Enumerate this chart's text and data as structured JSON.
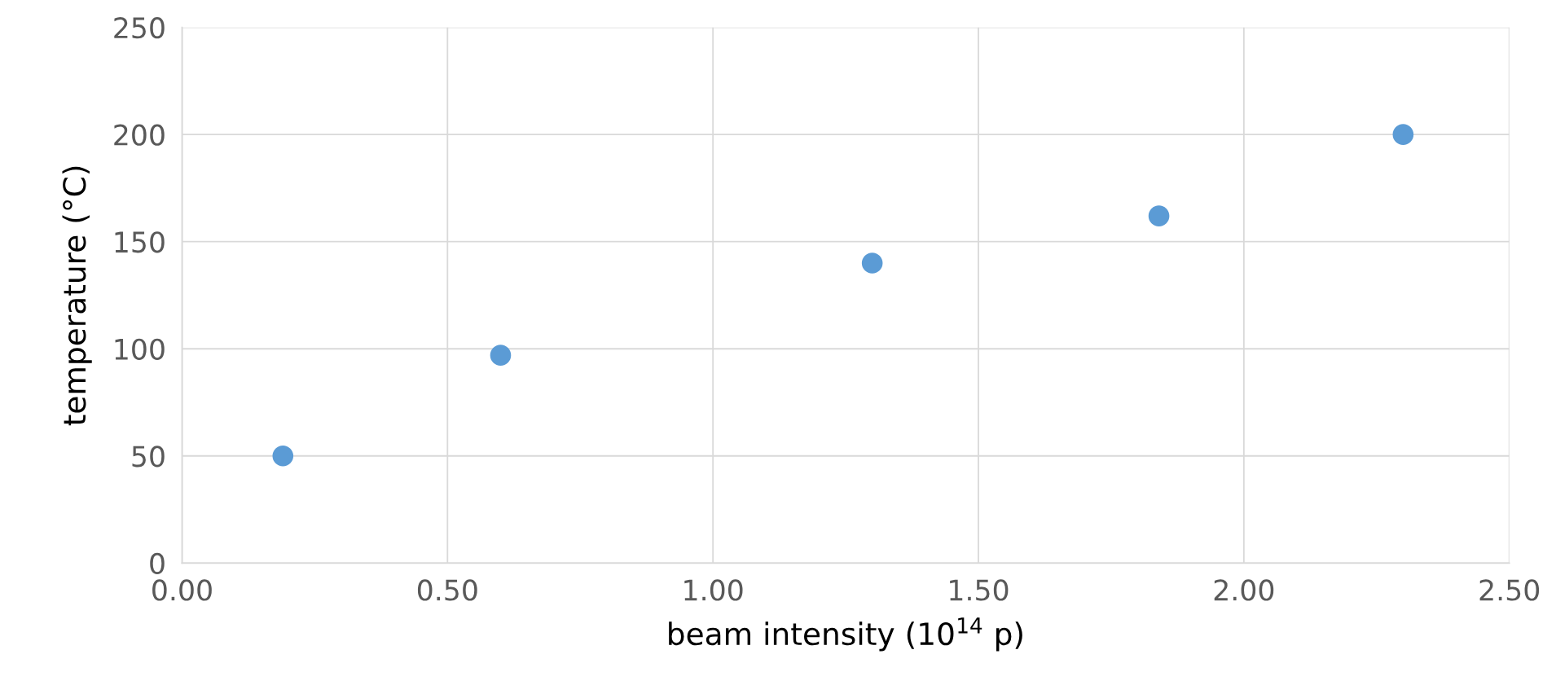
{
  "chart_data": {
    "type": "scatter",
    "xlabel": "beam intensity (10$^{14}$ p)",
    "ylabel": "temperature (°C)",
    "x": [
      0.19,
      0.6,
      1.3,
      1.84,
      2.3
    ],
    "series": [
      {
        "color": "#5b9bd5",
        "values": [
          50,
          97,
          140,
          162,
          200
        ]
      }
    ],
    "xlim": [
      0,
      2.5
    ],
    "ylim": [
      0,
      250
    ],
    "xticks": [
      {
        "value": 0,
        "label": "0.00"
      },
      {
        "value": 0.5,
        "label": "0.50"
      },
      {
        "value": 1,
        "label": "1.00"
      },
      {
        "value": 1.5,
        "label": "1.50"
      },
      {
        "value": 2,
        "label": "2.00"
      },
      {
        "value": 2.5,
        "label": "2.50"
      }
    ],
    "yticks": [
      0,
      50,
      100,
      150,
      200,
      250
    ],
    "grid": true,
    "marker": "circle"
  }
}
